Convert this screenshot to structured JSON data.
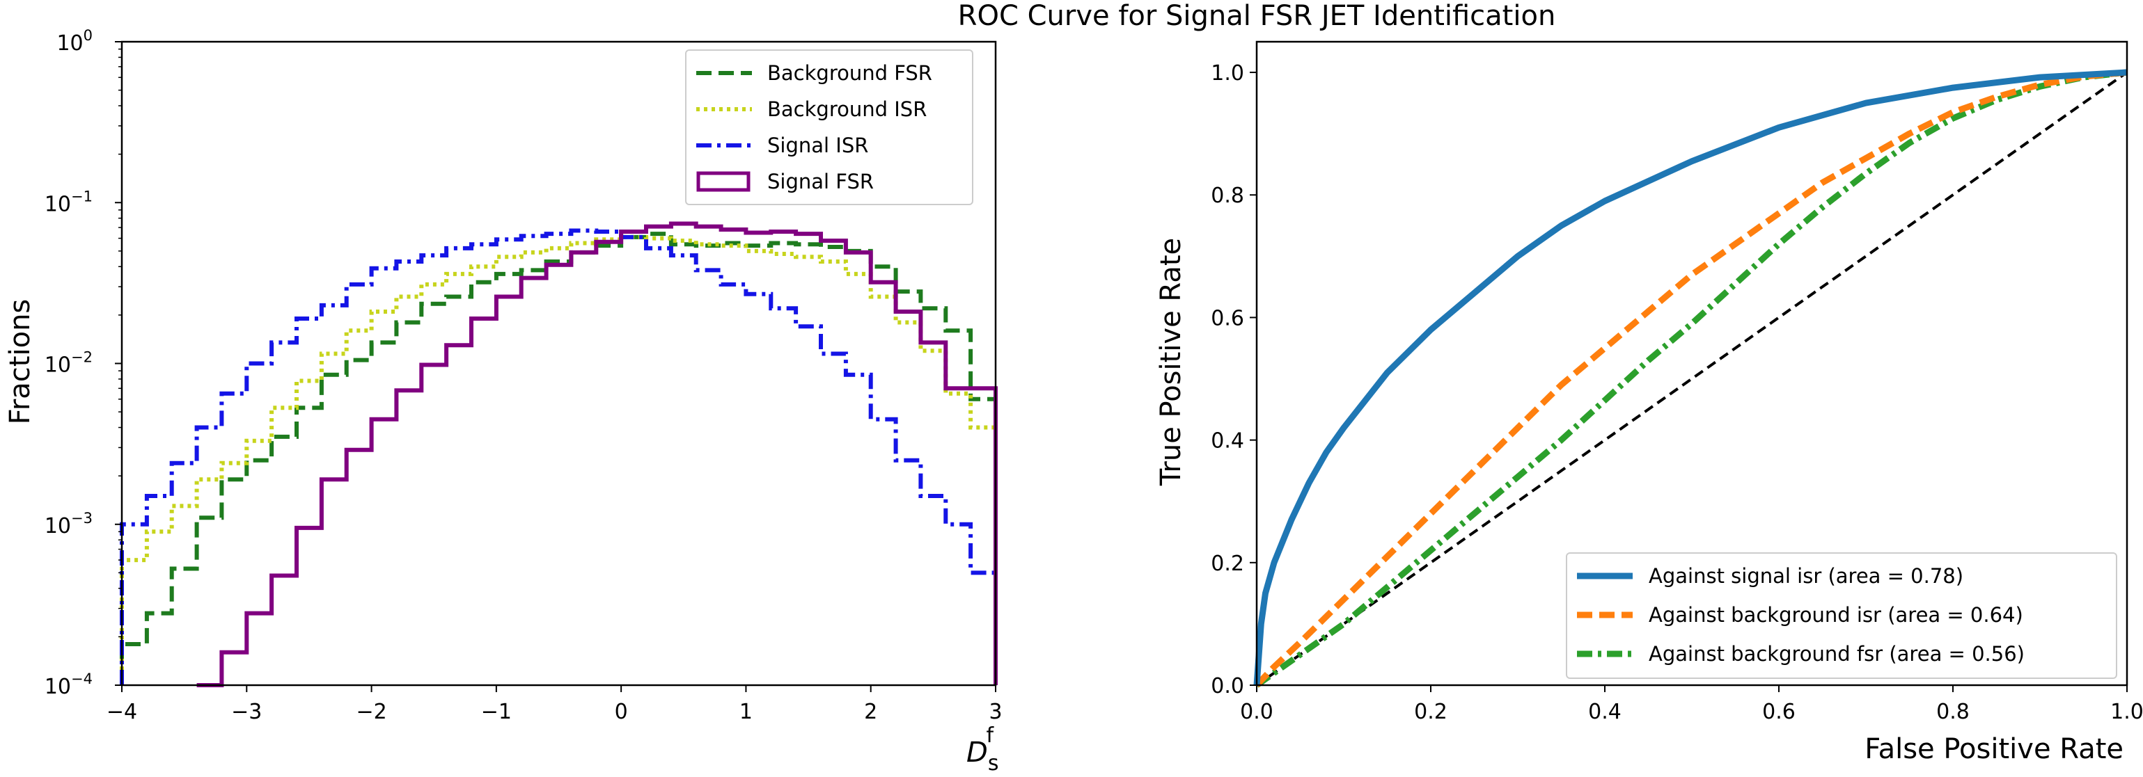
{
  "chart_data": [
    {
      "type": "step",
      "title": "",
      "xlabel": "D",
      "xlabel_sub": "s",
      "xlabel_sup": "f",
      "ylabel": "Fractions",
      "yscale": "log",
      "xlim": [
        -4,
        3
      ],
      "ylim": [
        0.0001,
        1
      ],
      "xticks": [
        {
          "value": -4,
          "label": "−4"
        },
        {
          "value": -3,
          "label": "−3"
        },
        {
          "value": -2,
          "label": "−2"
        },
        {
          "value": -1,
          "label": "−1"
        },
        {
          "value": 0,
          "label": "0"
        },
        {
          "value": 1,
          "label": "1"
        },
        {
          "value": 2,
          "label": "2"
        },
        {
          "value": 3,
          "label": "3"
        }
      ],
      "yticks": [
        {
          "value": 0.0001,
          "base": "10",
          "exp": "−4"
        },
        {
          "value": 0.001,
          "base": "10",
          "exp": "−3"
        },
        {
          "value": 0.01,
          "base": "10",
          "exp": "−2"
        },
        {
          "value": 0.1,
          "base": "10",
          "exp": "−1"
        },
        {
          "value": 1,
          "base": "10",
          "exp": "0"
        }
      ],
      "grid": false,
      "legend_position": "top-right",
      "bin_edges": [
        -4.0,
        -3.8,
        -3.6,
        -3.4,
        -3.2,
        -3.0,
        -2.8,
        -2.6,
        -2.4,
        -2.2,
        -2.0,
        -1.8,
        -1.6,
        -1.4,
        -1.2,
        -1.0,
        -0.8,
        -0.6,
        -0.4,
        -0.2,
        0.0,
        0.2,
        0.4,
        0.6,
        0.8,
        1.0,
        1.2,
        1.4,
        1.6,
        1.8,
        2.0,
        2.2,
        2.4,
        2.6,
        2.8,
        3.0
      ],
      "series": [
        {
          "name": "Background FSR",
          "color": "#1e7b1e",
          "dash": "dashed",
          "values": [
            0.00018,
            0.00028,
            0.00053,
            0.0011,
            0.0019,
            0.0025,
            0.0035,
            0.0053,
            0.0085,
            0.0105,
            0.0135,
            0.018,
            0.0235,
            0.026,
            0.032,
            0.036,
            0.038,
            0.043,
            0.049,
            0.054,
            0.061,
            0.064,
            0.055,
            0.054,
            0.056,
            0.054,
            0.056,
            0.055,
            0.053,
            0.05,
            0.04,
            0.028,
            0.022,
            0.016,
            0.006
          ]
        },
        {
          "name": "Background ISR",
          "color": "#c7d41c",
          "dash": "dotted",
          "values": [
            0.0006,
            0.0009,
            0.0013,
            0.0019,
            0.0024,
            0.0033,
            0.0053,
            0.0078,
            0.0115,
            0.016,
            0.021,
            0.026,
            0.031,
            0.036,
            0.04,
            0.046,
            0.049,
            0.052,
            0.056,
            0.059,
            0.061,
            0.06,
            0.058,
            0.055,
            0.054,
            0.05,
            0.048,
            0.046,
            0.043,
            0.036,
            0.026,
            0.018,
            0.012,
            0.0065,
            0.004
          ]
        },
        {
          "name": "Signal ISR",
          "color": "#1414e6",
          "dash": "dashdot",
          "values": [
            0.001,
            0.0015,
            0.0024,
            0.004,
            0.0065,
            0.01,
            0.0135,
            0.019,
            0.023,
            0.031,
            0.039,
            0.043,
            0.047,
            0.052,
            0.055,
            0.059,
            0.062,
            0.064,
            0.067,
            0.066,
            0.061,
            0.052,
            0.047,
            0.038,
            0.031,
            0.027,
            0.022,
            0.017,
            0.0115,
            0.0085,
            0.0045,
            0.0025,
            0.0015,
            0.001,
            0.0005
          ]
        },
        {
          "name": "Signal FSR",
          "color": "#800080",
          "dash": "solid",
          "values": [
            0.0,
            0.0,
            0.0,
            0.0001,
            0.00016,
            0.00028,
            0.00048,
            0.00095,
            0.0019,
            0.0029,
            0.0045,
            0.0068,
            0.0098,
            0.013,
            0.019,
            0.026,
            0.034,
            0.041,
            0.049,
            0.057,
            0.066,
            0.071,
            0.074,
            0.071,
            0.068,
            0.065,
            0.066,
            0.064,
            0.058,
            0.049,
            0.032,
            0.021,
            0.0135,
            0.007,
            0.007
          ]
        }
      ]
    },
    {
      "type": "line",
      "title": "ROC Curve for Signal FSR JET Identification",
      "xlabel": "False Positive Rate",
      "ylabel": "True Positive Rate",
      "xlim": [
        0,
        1
      ],
      "ylim": [
        0,
        1.05
      ],
      "xticks": [
        "0.0",
        "0.2",
        "0.4",
        "0.6",
        "0.8",
        "1.0"
      ],
      "yticks": [
        "0.0",
        "0.2",
        "0.4",
        "0.6",
        "0.8",
        "1.0"
      ],
      "grid": false,
      "legend_position": "lower-right",
      "series": [
        {
          "name": "Against signal isr (area = 0.78)",
          "color": "#1f77b4",
          "dash": "solid",
          "x": [
            0.0,
            0.005,
            0.01,
            0.02,
            0.04,
            0.06,
            0.08,
            0.1,
            0.15,
            0.2,
            0.25,
            0.3,
            0.35,
            0.4,
            0.5,
            0.6,
            0.7,
            0.8,
            0.9,
            1.0
          ],
          "y": [
            0.0,
            0.1,
            0.15,
            0.2,
            0.27,
            0.33,
            0.38,
            0.42,
            0.51,
            0.58,
            0.64,
            0.7,
            0.75,
            0.79,
            0.855,
            0.91,
            0.95,
            0.975,
            0.992,
            1.0
          ]
        },
        {
          "name": "Against background isr (area = 0.64)",
          "color": "#ff7f0e",
          "dash": "dashed",
          "x": [
            0.0,
            0.02,
            0.05,
            0.1,
            0.15,
            0.2,
            0.25,
            0.3,
            0.35,
            0.4,
            0.45,
            0.5,
            0.55,
            0.6,
            0.65,
            0.7,
            0.75,
            0.8,
            0.85,
            0.9,
            0.95,
            1.0
          ],
          "y": [
            0.0,
            0.03,
            0.07,
            0.14,
            0.21,
            0.28,
            0.35,
            0.42,
            0.49,
            0.55,
            0.61,
            0.67,
            0.72,
            0.77,
            0.82,
            0.86,
            0.9,
            0.935,
            0.96,
            0.98,
            0.993,
            1.0
          ]
        },
        {
          "name": "Against background fsr (area = 0.56)",
          "color": "#2ca02c",
          "dash": "dashdot",
          "x": [
            0.0,
            0.05,
            0.1,
            0.15,
            0.2,
            0.25,
            0.3,
            0.35,
            0.4,
            0.45,
            0.5,
            0.55,
            0.6,
            0.65,
            0.7,
            0.75,
            0.8,
            0.85,
            0.9,
            0.95,
            1.0
          ],
          "y": [
            0.0,
            0.05,
            0.1,
            0.16,
            0.22,
            0.28,
            0.34,
            0.4,
            0.465,
            0.53,
            0.59,
            0.655,
            0.72,
            0.78,
            0.835,
            0.885,
            0.925,
            0.955,
            0.977,
            0.992,
            1.0
          ]
        },
        {
          "name": "",
          "color": "#000000",
          "dash": "dashed",
          "x": [
            0,
            1
          ],
          "y": [
            0,
            1
          ]
        }
      ]
    }
  ]
}
